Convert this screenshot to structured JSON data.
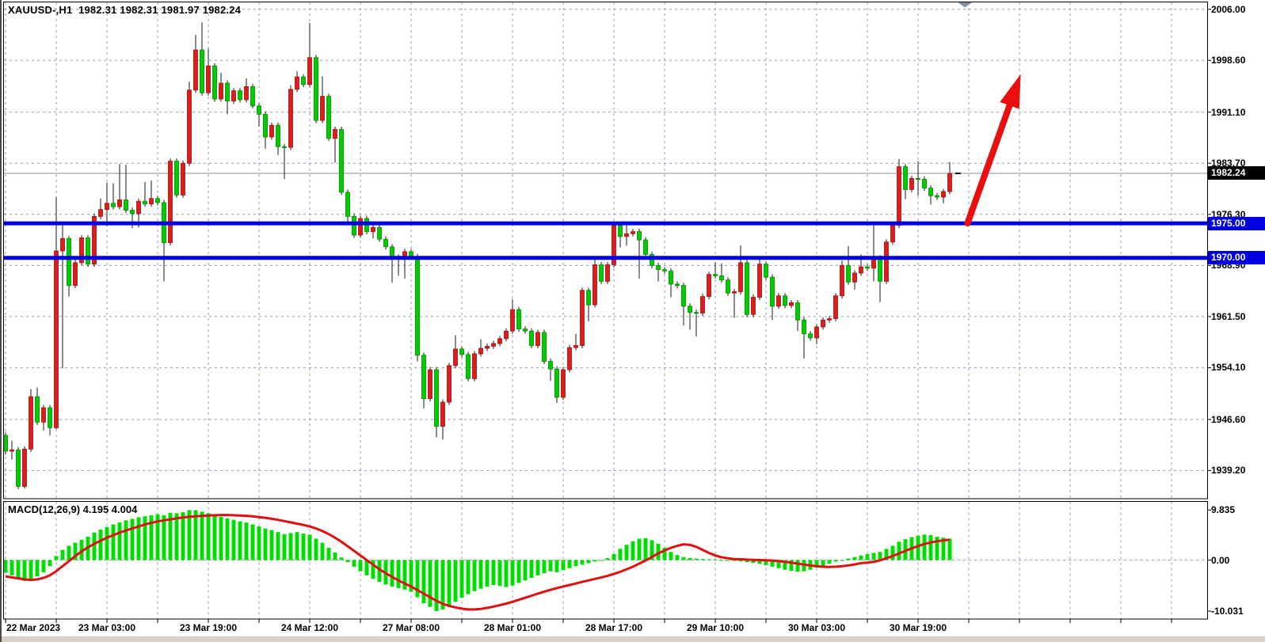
{
  "header": {
    "title": "XAUUSD-,H1  1982.31 1982.31 1981.97 1982.24"
  },
  "macd_panel": {
    "label": "MACD(12,26,9) 4.195 4.004",
    "axis_labels": [
      "9.835",
      "0.00",
      "-10.031"
    ]
  },
  "price_axis": {
    "ticks": [
      "2006.00",
      "1998.60",
      "1991.10",
      "1983.70",
      "1976.30",
      "1968.90",
      "1961.50",
      "1954.10",
      "1946.60",
      "1939.20"
    ],
    "current_price_label": "1982.24",
    "level_labels": [
      "1975.00",
      "1970.00"
    ]
  },
  "time_axis": {
    "labels": [
      "22 Mar 2023",
      "23 Mar 03:00",
      "23 Mar 19:00",
      "24 Mar 12:00",
      "27 Mar 08:00",
      "28 Mar 01:00",
      "28 Mar 17:00",
      "29 Mar 10:00",
      "30 Mar 03:00",
      "30 Mar 19:00"
    ]
  },
  "colors": {
    "bull_candle": "#dd1c1c",
    "bull_border": "#a01010",
    "bear_candle": "#00cc00",
    "bear_border": "#008a00",
    "wick": "#1a1a1a",
    "grid": "#8c9cb4",
    "level_line": "#0000e0",
    "current_price_line": "#8a9099",
    "current_price_box": "#000000",
    "level_box": "#0000e0",
    "macd_bar": "#00dd00",
    "macd_signal": "#e01010",
    "arrow": "#ea0f0f",
    "scroll_marker": "#8190a0",
    "pane_border": "#000000"
  },
  "chart_data": {
    "type": "candlestick",
    "symbol": "XAUUSD-",
    "timeframe": "H1",
    "current_ohlc": {
      "open": 1982.31,
      "high": 1982.31,
      "low": 1981.97,
      "close": 1982.24
    },
    "price_gridlines": [
      2006.0,
      1998.6,
      1991.1,
      1983.7,
      1976.3,
      1968.9,
      1961.5,
      1954.1,
      1946.6,
      1939.2
    ],
    "levels": [
      1975.0,
      1970.0
    ],
    "candles": {
      "first_open": 1944.3,
      "default_wick": 0.4,
      "closes": [
        1942.0,
        1942.2,
        1936.9,
        1942.3,
        1949.9,
        1946.2,
        1948.3,
        1945.4,
        1971.0,
        1972.8,
        1966.0,
        1969.3,
        1972.9,
        1969.1,
        1976.0,
        1977.0,
        1977.9,
        1977.4,
        1978.4,
        1976.9,
        1976.4,
        1978.2,
        1977.8,
        1978.6,
        1978.0,
        1972.2,
        1984.0,
        1979.1,
        1983.7,
        1994.3,
        2000.1,
        1993.9,
        1997.8,
        1993.0,
        1995.3,
        1992.7,
        1994.2,
        1992.9,
        1994.8,
        1992.0,
        1990.8,
        1987.5,
        1989.2,
        1986.1,
        1986.0,
        1994.4,
        1996.2,
        1995.1,
        1999.0,
        1989.9,
        1993.4,
        1987.3,
        1988.6,
        1979.5,
        1976.0,
        1973.3,
        1975.7,
        1973.8,
        1974.4,
        1972.7,
        1971.6,
        1969.9,
        1970.1,
        1970.9,
        1970.2,
        1955.9,
        1949.6,
        1953.8,
        1945.6,
        1949.1,
        1954.4,
        1956.8,
        1956.0,
        1952.5,
        1956.1,
        1956.9,
        1957.2,
        1957.6,
        1958.3,
        1959.4,
        1962.5,
        1959.7,
        1959.4,
        1957.3,
        1959.2,
        1955.0,
        1953.9,
        1949.8,
        1953.8,
        1957.0,
        1957.3,
        1965.3,
        1963.2,
        1969.0,
        1966.6,
        1969.0,
        1974.7,
        1973.1,
        1973.5,
        1973.8,
        1972.6,
        1970.5,
        1968.9,
        1968.3,
        1968.1,
        1966.2,
        1966.0,
        1963.0,
        1962.1,
        1962.0,
        1964.4,
        1967.6,
        1967.4,
        1966.8,
        1964.9,
        1965.1,
        1969.3,
        1961.8,
        1964.3,
        1969.1,
        1967.2,
        1963.0,
        1964.5,
        1963.1,
        1963.5,
        1961.0,
        1959.0,
        1958.4,
        1960.0,
        1961.0,
        1961.2,
        1964.5,
        1968.9,
        1966.5,
        1967.8,
        1968.7,
        1968.5,
        1970.0,
        1966.6,
        1972.3,
        1974.7,
        1983.2,
        1979.9,
        1981.5,
        1981.4,
        1980.1,
        1979.0,
        1978.8,
        1979.6,
        1982.24
      ],
      "high_overrides": {
        "1": 1943.5,
        "4": 1951.0,
        "5": 1951.2,
        "8": 1978.8,
        "9": 1975.1,
        "15": 1978.6,
        "16": 1980.9,
        "17": 1980.8,
        "18": 1983.6,
        "19": 1983.5,
        "22": 1981.0,
        "23": 1981.2,
        "29": 1995.5,
        "30": 2002.3,
        "31": 2004.1,
        "32": 2000.3,
        "34": 1996.8,
        "38": 1996.0,
        "45": 1995.0,
        "46": 1997.0,
        "48": 2004.0,
        "50": 1996.3,
        "71": 1958.8,
        "75": 1958.2,
        "80": 1964.0,
        "90": 1959.0,
        "93": 1969.8,
        "96": 1975.2,
        "98": 1975.3,
        "112": 1969.4,
        "113": 1969.2,
        "116": 1971.8,
        "119": 1970.0,
        "132": 1969.6,
        "133": 1971.7,
        "135": 1970.5,
        "137": 1975.0,
        "140": 1975.2,
        "141": 1984.3,
        "144": 1984.0,
        "149": 1983.9
      },
      "low_overrides": {
        "0": 1941.5,
        "1": 1940.8,
        "2": 1936.5,
        "3": 1936.6,
        "6": 1945.0,
        "7": 1944.3,
        "8": 1945.2,
        "9": 1954.0,
        "10": 1964.4,
        "16": 1974.6,
        "20": 1974.3,
        "21": 1974.4,
        "25": 1966.6,
        "35": 1990.8,
        "40": 1989.0,
        "41": 1985.8,
        "43": 1984.9,
        "44": 1981.4,
        "52": 1983.8,
        "54": 1974.9,
        "58": 1972.8,
        "61": 1966.4,
        "62": 1967.4,
        "63": 1967.0,
        "65": 1955.0,
        "66": 1948.2,
        "68": 1944.0,
        "69": 1943.7,
        "86": 1952.2,
        "87": 1949.0,
        "92": 1960.8,
        "97": 1971.5,
        "98": 1971.8,
        "100": 1967.0,
        "103": 1966.6,
        "105": 1964.3,
        "107": 1960.2,
        "108": 1959.6,
        "109": 1958.6,
        "115": 1961.3,
        "121": 1961.0,
        "125": 1959.4,
        "126": 1955.4,
        "128": 1957.5,
        "134": 1965.4,
        "137": 1966.6,
        "138": 1963.6,
        "142": 1978.5,
        "144": 1979.0,
        "146": 1977.7,
        "148": 1977.9
      }
    },
    "arrow": {
      "from": {
        "bar": 151.8,
        "price": 1975.0
      },
      "to": {
        "bar": 160.2,
        "price": 1996.6
      }
    },
    "scroll_marker_bar": 151.4,
    "macd": {
      "fast": 12,
      "slow": 26,
      "signal_period": 9,
      "macd_value": 4.195,
      "signal_value": 4.004,
      "max": 9.835,
      "min": -10.031,
      "histogram": [
        -2.5,
        -3.0,
        -3.6,
        -4.1,
        -3.8,
        -3.2,
        -2.4,
        -1.2,
        0.8,
        2.0,
        2.8,
        3.4,
        4.0,
        4.6,
        5.4,
        6.0,
        6.5,
        7.0,
        7.4,
        7.8,
        8.1,
        8.4,
        8.6,
        8.8,
        9.0,
        8.8,
        9.3,
        9.2,
        9.4,
        9.835,
        9.8,
        9.5,
        9.2,
        8.8,
        8.5,
        8.2,
        7.9,
        7.6,
        7.4,
        7.0,
        6.6,
        6.2,
        5.9,
        5.5,
        5.1,
        5.3,
        5.5,
        5.2,
        5.0,
        4.2,
        3.4,
        2.4,
        1.5,
        0.5,
        -0.4,
        -1.3,
        -2.2,
        -3.0,
        -3.7,
        -4.3,
        -4.8,
        -5.2,
        -5.5,
        -5.8,
        -6.2,
        -7.3,
        -8.5,
        -9.2,
        -10.031,
        -9.7,
        -9.0,
        -8.2,
        -7.4,
        -6.7,
        -6.1,
        -5.6,
        -5.2,
        -4.9,
        -5.1,
        -5.3,
        -5.0,
        -4.5,
        -4.0,
        -3.5,
        -3.0,
        -2.6,
        -2.2,
        -2.4,
        -2.0,
        -1.6,
        -1.2,
        -0.9,
        -0.6,
        -0.3,
        -0.1,
        0.4,
        1.2,
        2.2,
        3.0,
        3.7,
        4.2,
        4.3,
        3.9,
        3.2,
        2.4,
        1.6,
        1.0,
        0.6,
        0.4,
        0.3,
        0.2,
        0.15,
        0.1,
        0.0,
        -0.1,
        -0.15,
        -0.25,
        -0.4,
        -0.55,
        -0.75,
        -1.0,
        -1.3,
        -1.6,
        -1.9,
        -2.1,
        -2.3,
        -2.2,
        -1.9,
        -1.5,
        -1.1,
        -0.7,
        -0.3,
        -0.1,
        0.3,
        0.6,
        0.9,
        1.2,
        1.4,
        1.6,
        2.2,
        2.8,
        3.6,
        4.1,
        4.5,
        4.8,
        5.0,
        4.9,
        4.6,
        4.4,
        4.195
      ],
      "signal": [
        -3.2,
        -3.4,
        -3.6,
        -3.8,
        -3.9,
        -3.8,
        -3.5,
        -3.0,
        -2.2,
        -1.2,
        -0.2,
        0.8,
        1.7,
        2.5,
        3.2,
        3.8,
        4.4,
        4.9,
        5.4,
        5.8,
        6.2,
        6.6,
        7.0,
        7.3,
        7.6,
        7.8,
        8.0,
        8.2,
        8.35,
        8.5,
        8.6,
        8.7,
        8.75,
        8.8,
        8.85,
        8.85,
        8.8,
        8.75,
        8.7,
        8.6,
        8.45,
        8.3,
        8.1,
        7.9,
        7.65,
        7.4,
        7.15,
        6.9,
        6.6,
        6.2,
        5.7,
        5.1,
        4.4,
        3.6,
        2.7,
        1.8,
        0.9,
        0.0,
        -0.9,
        -1.8,
        -2.6,
        -3.3,
        -4.0,
        -4.6,
        -5.2,
        -5.9,
        -6.6,
        -7.3,
        -8.0,
        -8.6,
        -9.0,
        -9.3,
        -9.55,
        -9.7,
        -9.7,
        -9.6,
        -9.4,
        -9.15,
        -8.85,
        -8.55,
        -8.2,
        -7.8,
        -7.4,
        -7.0,
        -6.6,
        -6.2,
        -5.85,
        -5.5,
        -5.2,
        -4.9,
        -4.6,
        -4.3,
        -4.0,
        -3.7,
        -3.4,
        -3.1,
        -2.7,
        -2.3,
        -1.8,
        -1.3,
        -0.7,
        -0.1,
        0.6,
        1.3,
        1.9,
        2.4,
        2.8,
        3.1,
        3.0,
        2.6,
        2.0,
        1.4,
        0.9,
        0.55,
        0.35,
        0.2,
        0.15,
        0.1,
        0.05,
        0.0,
        -0.05,
        -0.1,
        -0.2,
        -0.35,
        -0.5,
        -0.7,
        -0.9,
        -1.05,
        -1.2,
        -1.3,
        -1.35,
        -1.3,
        -1.2,
        -1.05,
        -0.85,
        -0.6,
        -0.5,
        -0.35,
        -0.05,
        0.35,
        0.8,
        1.3,
        1.8,
        2.3,
        2.75,
        3.15,
        3.45,
        3.7,
        3.88,
        4.004
      ]
    }
  }
}
